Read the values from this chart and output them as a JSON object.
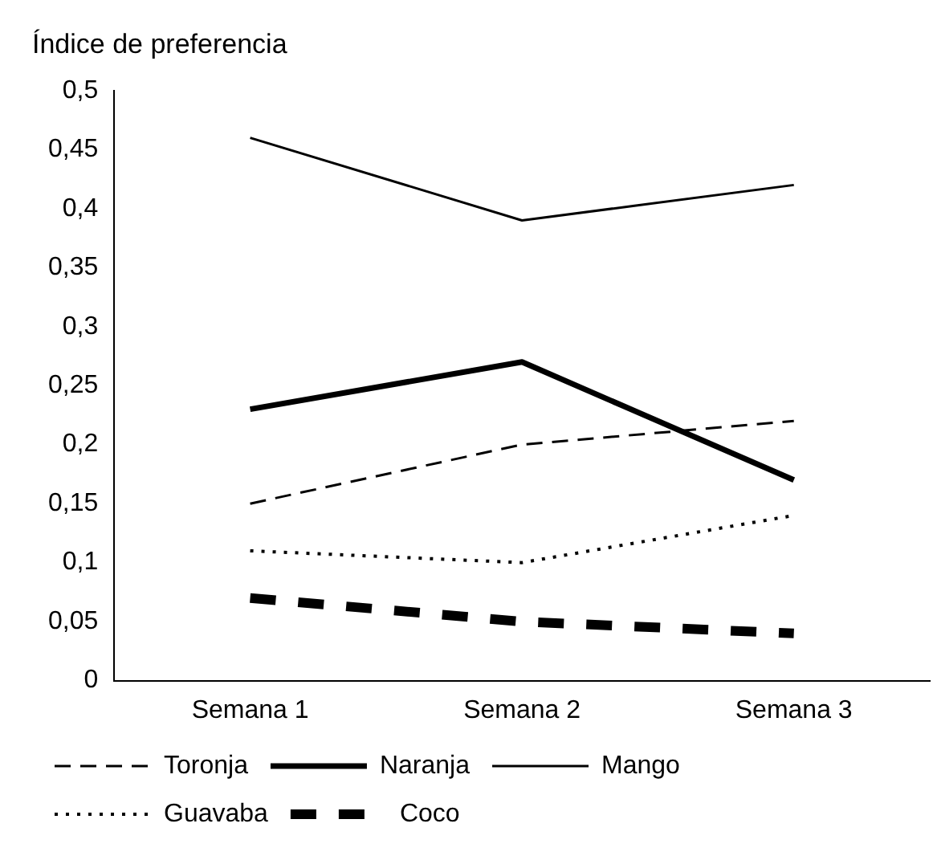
{
  "chart_data": {
    "type": "line",
    "ylabel": "Índice de preferencia",
    "categories": [
      "Semana 1",
      "Semana 2",
      "Semana 3"
    ],
    "series": [
      {
        "name": "Toronja",
        "color": "#000000",
        "line_style": "dashed",
        "values": [
          0.15,
          0.2,
          0.22
        ]
      },
      {
        "name": "Naranja",
        "color": "#000000",
        "line_style": "solid",
        "values": [
          0.23,
          0.27,
          0.17
        ]
      },
      {
        "name": "Mango",
        "color": "#000000",
        "line_style": "solid",
        "values": [
          0.46,
          0.39,
          0.42
        ]
      },
      {
        "name": "Guavaba",
        "color": "#000000",
        "line_style": "dotted",
        "values": [
          0.11,
          0.1,
          0.14
        ]
      },
      {
        "name": "Coco",
        "color": "#000000",
        "line_style": "dashed",
        "values": [
          0.07,
          0.05,
          0.04
        ]
      }
    ],
    "ylim": [
      0,
      0.5
    ],
    "yticks": [
      {
        "value": 0,
        "label": "0"
      },
      {
        "value": 0.05,
        "label": "0,05"
      },
      {
        "value": 0.1,
        "label": "0,1"
      },
      {
        "value": 0.15,
        "label": "0,15"
      },
      {
        "value": 0.2,
        "label": "0,2"
      },
      {
        "value": 0.25,
        "label": "0,25"
      },
      {
        "value": 0.3,
        "label": "0,3"
      },
      {
        "value": 0.35,
        "label": "0,35"
      },
      {
        "value": 0.4,
        "label": "0,4"
      },
      {
        "value": 0.45,
        "label": "0,45"
      },
      {
        "value": 0.5,
        "label": "0,5"
      }
    ],
    "grid": false,
    "legend": "bottom",
    "marker": "none"
  }
}
